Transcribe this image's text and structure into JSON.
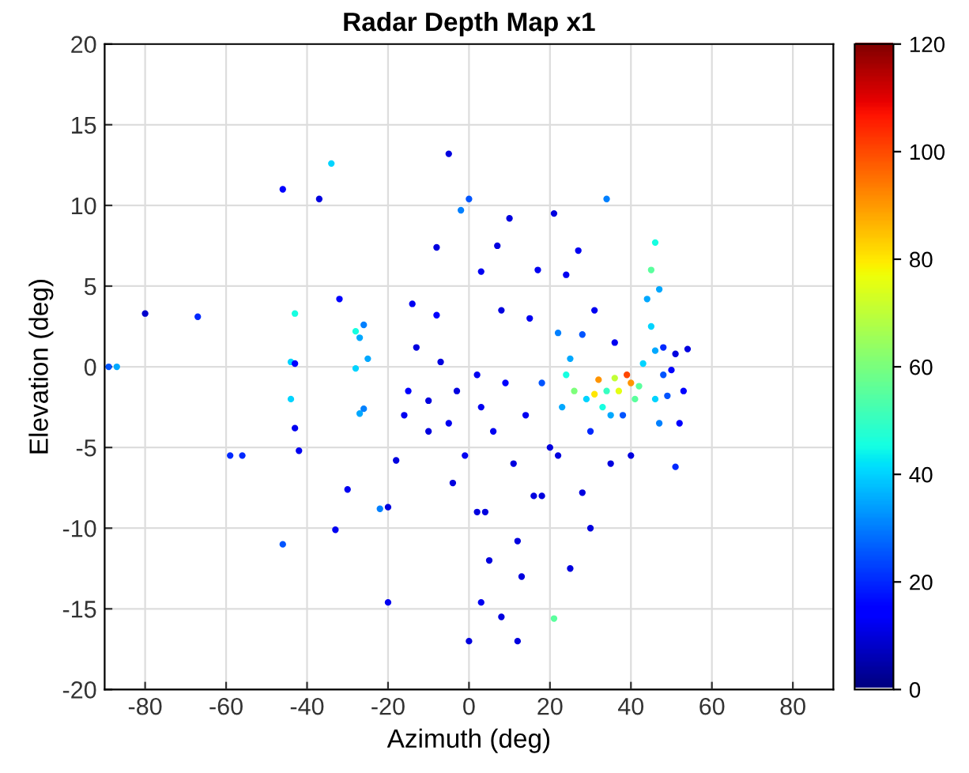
{
  "chart_data": {
    "type": "scatter",
    "title": "Radar Depth Map x1",
    "xlabel": "Azimuth (deg)",
    "ylabel": "Elevation (deg)",
    "x": [
      -89,
      -87,
      -80,
      -67,
      -59,
      -56,
      -46,
      -46,
      -44,
      -43,
      -43,
      -44,
      -43,
      -42,
      -37,
      -34,
      -32,
      -33,
      -30,
      -28,
      -27,
      -26,
      -25,
      -28,
      -27,
      -26,
      -22,
      -20,
      -20,
      -18,
      -16,
      -15,
      -14,
      -13,
      -10,
      -8,
      -8,
      -7,
      -5,
      -5,
      -4,
      -3,
      -2,
      -1,
      0,
      2,
      3,
      3,
      4,
      5,
      6,
      7,
      8,
      8,
      9,
      10,
      11,
      12,
      13,
      14,
      15,
      16,
      17,
      18,
      20,
      21,
      21,
      22,
      23,
      24,
      24,
      25,
      25,
      26,
      27,
      28,
      28,
      29,
      30,
      31,
      31,
      32,
      33,
      34,
      34,
      35,
      36,
      36,
      37,
      38,
      39,
      40,
      40,
      41,
      42,
      43,
      44,
      45,
      45,
      46,
      46,
      46,
      47,
      47,
      48,
      48,
      49,
      50,
      51,
      51,
      52,
      53,
      54,
      -10,
      0,
      3,
      12,
      18,
      22,
      30,
      35,
      2
    ],
    "values": [
      0,
      0,
      3.3,
      3.1,
      -5.5,
      -5.5,
      11,
      -11,
      0.3,
      0.2,
      3.3,
      -2,
      -3.8,
      -5.2,
      10.4,
      12.6,
      4.2,
      -10.1,
      -7.6,
      2.2,
      1.8,
      2.6,
      0.5,
      -0.1,
      -2.9,
      -2.6,
      -8.8,
      -14.6,
      -8.7,
      -5.8,
      -3,
      -1.5,
      3.9,
      1.2,
      -2.1,
      7.4,
      3.2,
      0.3,
      13.2,
      -3.5,
      -7.2,
      -1.5,
      9.7,
      -5.5,
      10.4,
      -0.5,
      5.9,
      -2.5,
      -9,
      -12,
      -4,
      7.5,
      3.5,
      -15.5,
      -1,
      9.2,
      -6,
      -17,
      -13,
      -3,
      3,
      -8,
      6,
      -1,
      -5,
      -15.6,
      9.5,
      2.1,
      -2.5,
      -0.5,
      5.7,
      0.5,
      -12.5,
      -1.5,
      7.2,
      -7.8,
      2,
      -2,
      -4,
      3.5,
      -1.7,
      -0.8,
      -2.5,
      10.4,
      -1.5,
      -3,
      1.5,
      -0.7,
      -1.5,
      -3,
      -0.5,
      -1,
      -5.5,
      -2,
      -1.2,
      0.2,
      4.2,
      6,
      2.5,
      7.7,
      1,
      -2,
      4.8,
      -3.5,
      1.2,
      -0.5,
      -1.8,
      -0.2,
      0.8,
      -6.2,
      -3.5,
      -1.5,
      1.1,
      -4,
      -17,
      -14.6,
      -10.8,
      -8,
      -5.5,
      -10,
      -6,
      -9
    ],
    "cvalues": [
      25,
      35,
      8,
      20,
      20,
      20,
      15,
      25,
      40,
      15,
      45,
      40,
      12,
      12,
      10,
      40,
      15,
      12,
      12,
      45,
      35,
      30,
      35,
      40,
      35,
      30,
      30,
      12,
      10,
      10,
      12,
      15,
      12,
      10,
      10,
      10,
      15,
      10,
      10,
      12,
      10,
      10,
      30,
      12,
      25,
      12,
      12,
      12,
      10,
      10,
      12,
      10,
      10,
      10,
      15,
      10,
      10,
      10,
      10,
      12,
      12,
      10,
      12,
      25,
      10,
      55,
      10,
      30,
      35,
      45,
      12,
      35,
      10,
      60,
      12,
      10,
      25,
      40,
      20,
      12,
      80,
      90,
      45,
      30,
      50,
      35,
      12,
      70,
      75,
      25,
      100,
      90,
      10,
      55,
      55,
      40,
      35,
      55,
      40,
      45,
      35,
      40,
      35,
      30,
      20,
      25,
      25,
      15,
      10,
      20,
      15,
      15,
      10,
      10,
      10,
      12,
      10,
      10,
      10,
      10,
      10,
      10
    ],
    "xlim": [
      -90,
      90
    ],
    "ylim": [
      -20,
      20
    ],
    "xticks": [
      -80,
      -60,
      -40,
      -20,
      0,
      20,
      40,
      60,
      80
    ],
    "yticks": [
      -20,
      -15,
      -10,
      -5,
      0,
      5,
      10,
      15,
      20
    ],
    "clim": [
      0,
      120
    ],
    "cticks": [
      0,
      20,
      40,
      60,
      80,
      100,
      120
    ],
    "grid": true,
    "marker": "circle"
  }
}
